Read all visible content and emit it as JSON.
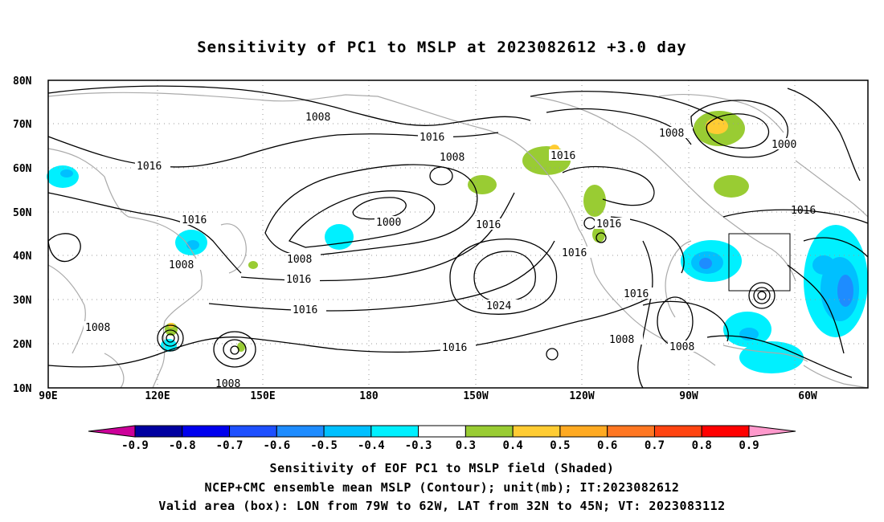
{
  "title": "Sensitivity of PC1 to MSLP at 2023082612 +3.0 day",
  "axes": {
    "lat_labels": [
      "80N",
      "70N",
      "60N",
      "50N",
      "40N",
      "30N",
      "20N",
      "10N"
    ],
    "lon_labels": [
      "90E",
      "120E",
      "150E",
      "180",
      "150W",
      "120W",
      "90W",
      "60W"
    ]
  },
  "contour_labels": [
    "1008",
    "1016",
    "1008",
    "1016",
    "1008",
    "1000",
    "1016",
    "1008",
    "1016",
    "1008",
    "1016",
    "1016",
    "1016",
    "1024",
    "1016",
    "1016",
    "1008",
    "1008",
    "1000",
    "1016",
    "1016",
    "1008",
    "1008"
  ],
  "colorbar": {
    "labels": [
      "-0.9",
      "-0.8",
      "-0.7",
      "-0.6",
      "-0.5",
      "-0.4",
      "-0.3",
      "0.3",
      "0.4",
      "0.5",
      "0.6",
      "0.7",
      "0.8",
      "0.9"
    ],
    "colors": [
      "#cc0099",
      "#0000a0",
      "#0000ee",
      "#1e50ff",
      "#1e8cff",
      "#00c0ff",
      "#00f0ff",
      "#ffffff",
      "#99cc33",
      "#ffcc33",
      "#ffaa22",
      "#ff7722",
      "#ff4411",
      "#ff0000",
      "#ff99cc"
    ]
  },
  "footer": {
    "line1": "Sensitivity of EOF PC1 to MSLP field (Shaded)",
    "line2": "NCEP+CMC ensemble mean MSLP (Contour); unit(mb); IT:2023082612",
    "line3": "Valid area (box): LON from 79W to 62W, LAT from 32N to 45N; VT: 2023083112"
  }
}
